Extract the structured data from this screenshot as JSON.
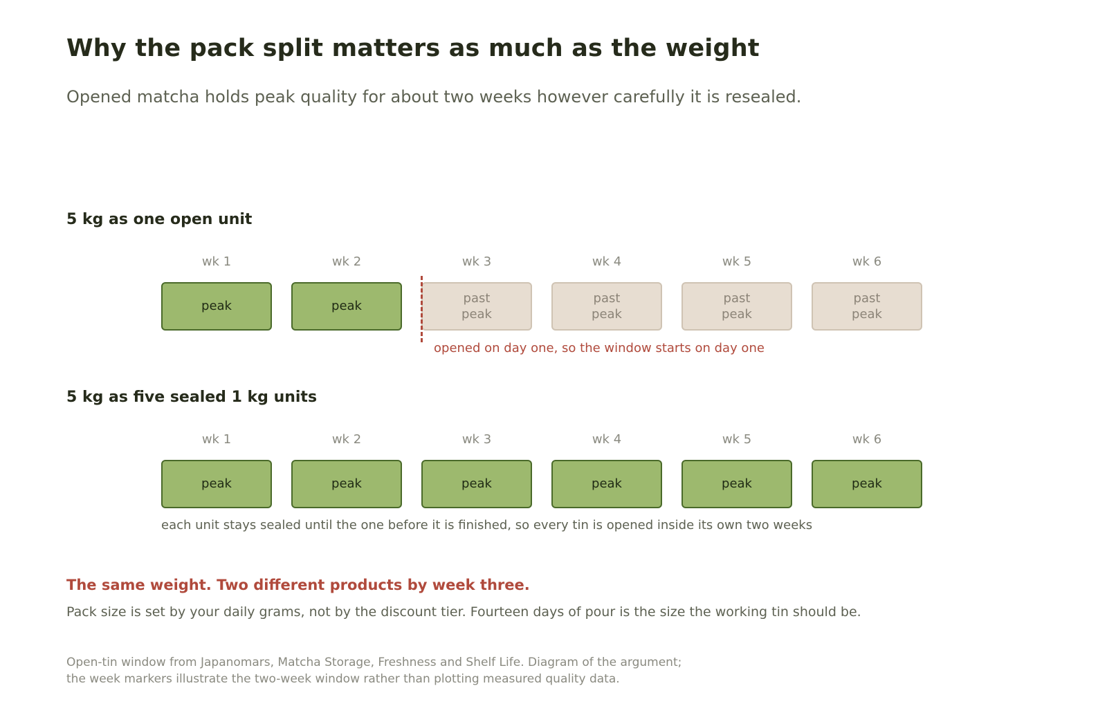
{
  "title": "Why the pack split matters as much as the weight",
  "subtitle": "Opened matcha holds peak quality for about two weeks however carefully it is resealed.",
  "colors": {
    "peak_fill": "#9db96e",
    "peak_border": "#4a6a2a",
    "past_fill": "#e7ddd1",
    "past_border": "#cfc3b3",
    "accent_red": "#b04a3c"
  },
  "scenarios": [
    {
      "heading": "5 kg as one open unit",
      "weeks": [
        {
          "label": "wk 1",
          "state": "peak",
          "text": "peak"
        },
        {
          "label": "wk 2",
          "state": "peak",
          "text": "peak"
        },
        {
          "label": "wk 3",
          "state": "past",
          "text": "past peak"
        },
        {
          "label": "wk 4",
          "state": "past",
          "text": "past peak"
        },
        {
          "label": "wk 5",
          "state": "past",
          "text": "past peak"
        },
        {
          "label": "wk 6",
          "state": "past",
          "text": "past peak"
        }
      ],
      "note": "opened on day one, so the window starts on day one"
    },
    {
      "heading": "5 kg as five sealed 1 kg units",
      "weeks": [
        {
          "label": "wk 1",
          "state": "peak",
          "text": "peak"
        },
        {
          "label": "wk 2",
          "state": "peak",
          "text": "peak"
        },
        {
          "label": "wk 3",
          "state": "peak",
          "text": "peak"
        },
        {
          "label": "wk 4",
          "state": "peak",
          "text": "peak"
        },
        {
          "label": "wk 5",
          "state": "peak",
          "text": "peak"
        },
        {
          "label": "wk 6",
          "state": "peak",
          "text": "peak"
        }
      ],
      "note": "each unit stays sealed until the one before it is finished, so every tin is opened inside its own two weeks"
    }
  ],
  "conclusion": {
    "title": "The same weight. Two different products by week three.",
    "body": "Pack size is set by your daily grams, not by the discount tier. Fourteen days of pour is the size the working tin should be."
  },
  "source": {
    "line1": "Open-tin window from Japanomars, Matcha Storage, Freshness and Shelf Life. Diagram of the argument;",
    "line2": "the week markers illustrate the two-week window rather than plotting measured quality data."
  }
}
